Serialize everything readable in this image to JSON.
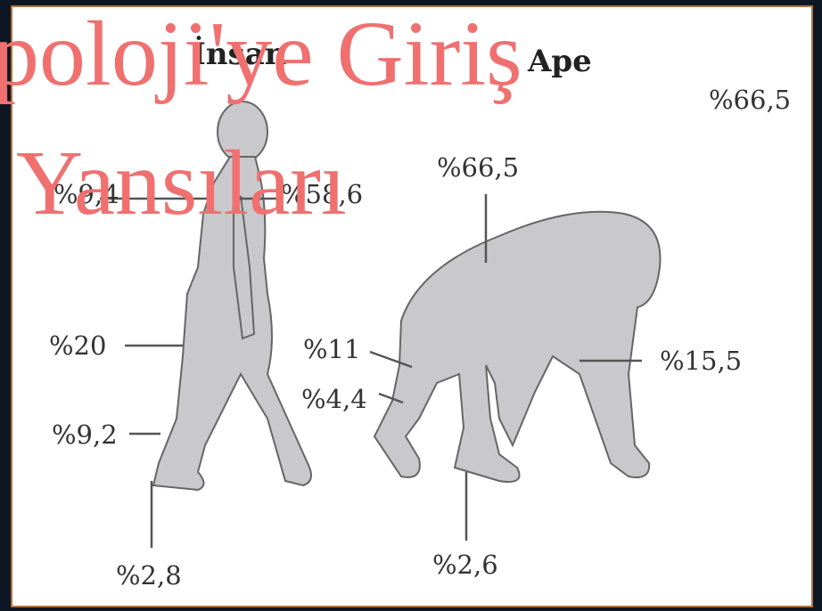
{
  "title": {
    "line1": "poloji'ye Giriş",
    "line2": "Yansıları"
  },
  "figures": [
    {
      "label": "İnsan",
      "measurements": [
        "%9,4",
        "%58,6",
        "%20",
        "%9,2",
        "%2,8"
      ]
    },
    {
      "label": "Ape",
      "measurements": [
        "%66,5",
        "%66,5",
        "%11",
        "%4,4",
        "%15,5",
        "%2,6"
      ]
    }
  ]
}
